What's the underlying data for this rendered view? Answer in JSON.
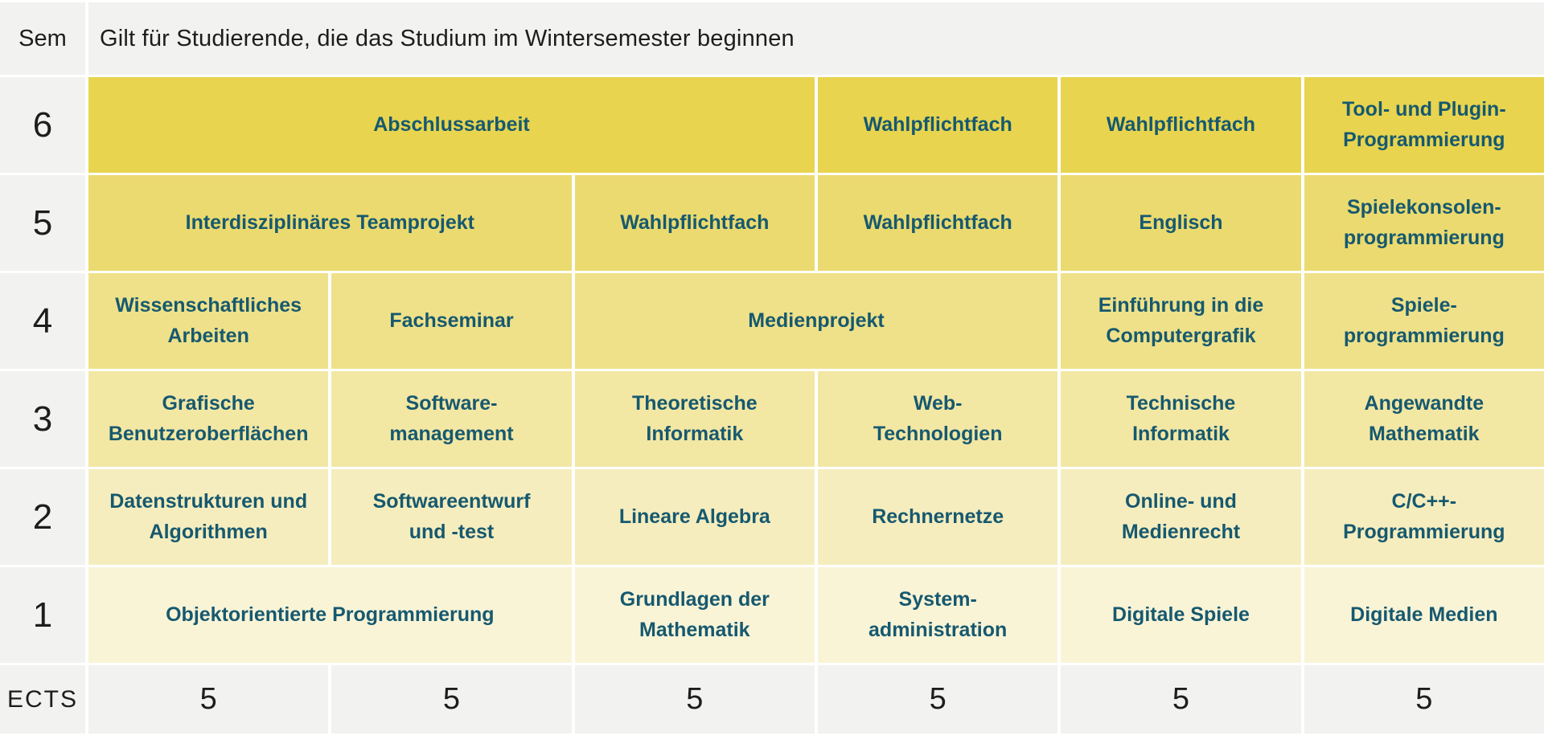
{
  "header": {
    "sem_label": "Sem",
    "note": "Gilt für Studierende, die das Studium im Wintersemester beginnen"
  },
  "colors": {
    "page_bg": "#ffffff",
    "gray_cell": "#f2f2f1",
    "text_dark": "#1d1d1b",
    "course_text": "#16596f",
    "row6": "#e8d44e",
    "row5": "#ebda6f",
    "row4": "#efe189",
    "row3": "#f3e7a4",
    "row2": "#f6edbe",
    "row1": "#faf4d7"
  },
  "semesters": [
    {
      "number": "6",
      "cells": [
        {
          "text": "Abschlussarbeit",
          "span": 3
        },
        {
          "text": "Wahlpflichtfach",
          "span": 1
        },
        {
          "text": "Wahlpflichtfach",
          "span": 1
        },
        {
          "text": "Tool- und Plugin-\nProgrammierung",
          "span": 1
        }
      ]
    },
    {
      "number": "5",
      "cells": [
        {
          "text": "Interdisziplinäres Teamprojekt",
          "span": 2
        },
        {
          "text": "Wahlpflichtfach",
          "span": 1
        },
        {
          "text": "Wahlpflichtfach",
          "span": 1
        },
        {
          "text": "Englisch",
          "span": 1
        },
        {
          "text": "Spielekonsolen-\nprogrammierung",
          "span": 1
        }
      ]
    },
    {
      "number": "4",
      "cells": [
        {
          "text": "Wissenschaftliches\nArbeiten",
          "span": 1
        },
        {
          "text": "Fachseminar",
          "span": 1
        },
        {
          "text": "Medienprojekt",
          "span": 2
        },
        {
          "text": "Einführung in die\nComputergrafik",
          "span": 1
        },
        {
          "text": "Spiele-\nprogrammierung",
          "span": 1
        }
      ]
    },
    {
      "number": "3",
      "cells": [
        {
          "text": "Grafische\nBenutzeroberflächen",
          "span": 1
        },
        {
          "text": "Software-\nmanagement",
          "span": 1
        },
        {
          "text": "Theoretische\nInformatik",
          "span": 1
        },
        {
          "text": "Web-\nTechnologien",
          "span": 1
        },
        {
          "text": "Technische\nInformatik",
          "span": 1
        },
        {
          "text": "Angewandte\nMathematik",
          "span": 1
        }
      ]
    },
    {
      "number": "2",
      "cells": [
        {
          "text": "Datenstrukturen und\nAlgorithmen",
          "span": 1
        },
        {
          "text": "Softwareentwurf\nund -test",
          "span": 1
        },
        {
          "text": "Lineare Algebra",
          "span": 1
        },
        {
          "text": "Rechnernetze",
          "span": 1
        },
        {
          "text": "Online- und\nMedienrecht",
          "span": 1
        },
        {
          "text": "C/C++-\nProgrammierung",
          "span": 1
        }
      ]
    },
    {
      "number": "1",
      "cells": [
        {
          "text": "Objektorientierte Programmierung",
          "span": 2
        },
        {
          "text": "Grundlagen der\nMathematik",
          "span": 1
        },
        {
          "text": "System-\nadministration",
          "span": 1
        },
        {
          "text": "Digitale Spiele",
          "span": 1
        },
        {
          "text": "Digitale Medien",
          "span": 1
        }
      ]
    }
  ],
  "ects": {
    "label": "ECTS",
    "values": [
      "5",
      "5",
      "5",
      "5",
      "5",
      "5"
    ]
  }
}
